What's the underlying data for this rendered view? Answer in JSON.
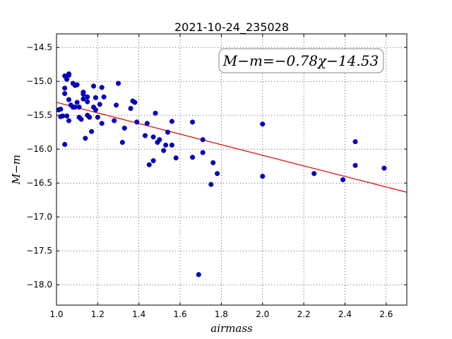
{
  "chart_data": {
    "type": "scatter",
    "title": "2021-10-24_235028",
    "xlabel": "airmass",
    "ylabel": "M−m",
    "xlim": [
      1.0,
      2.7
    ],
    "ylim": [
      -18.3,
      -14.3
    ],
    "y_inverted": false,
    "grid": true,
    "x_ticks": [
      "1.0",
      "1.2",
      "1.4",
      "1.6",
      "1.8",
      "2.0",
      "2.2",
      "2.4",
      "2.6"
    ],
    "x_tick_values": [
      1.0,
      1.2,
      1.4,
      1.6,
      1.8,
      2.0,
      2.2,
      2.4,
      2.6
    ],
    "y_ticks": [
      "−14.5",
      "−15.0",
      "−15.5",
      "−16.0",
      "−16.5",
      "−17.0",
      "−17.5",
      "−18.0"
    ],
    "y_tick_values": [
      -14.5,
      -15.0,
      -15.5,
      -16.0,
      -16.5,
      -17.0,
      -17.5,
      -18.0
    ],
    "annotation": "M−m=−0.78χ−14.53",
    "annotation_position": "top-right",
    "fit_line": {
      "slope": -0.78,
      "intercept": -14.53,
      "color": "#dd0000"
    },
    "point_color": "#0000cc",
    "points": [
      [
        1.01,
        -15.42
      ],
      [
        1.02,
        -15.52
      ],
      [
        1.02,
        -15.41
      ],
      [
        1.03,
        -15.51
      ],
      [
        1.04,
        -14.92
      ],
      [
        1.04,
        -15.1
      ],
      [
        1.04,
        -15.18
      ],
      [
        1.04,
        -15.93
      ],
      [
        1.05,
        -15.51
      ],
      [
        1.05,
        -14.97
      ],
      [
        1.06,
        -14.89
      ],
      [
        1.06,
        -14.91
      ],
      [
        1.06,
        -15.27
      ],
      [
        1.06,
        -15.58
      ],
      [
        1.07,
        -15.35
      ],
      [
        1.08,
        -15.03
      ],
      [
        1.08,
        -15.38
      ],
      [
        1.09,
        -15.06
      ],
      [
        1.09,
        -15.38
      ],
      [
        1.1,
        -15.05
      ],
      [
        1.1,
        -15.31
      ],
      [
        1.11,
        -15.38
      ],
      [
        1.11,
        -15.53
      ],
      [
        1.12,
        -15.56
      ],
      [
        1.13,
        -15.16
      ],
      [
        1.13,
        -15.19
      ],
      [
        1.13,
        -15.26
      ],
      [
        1.14,
        -15.84
      ],
      [
        1.15,
        -15.23
      ],
      [
        1.15,
        -15.3
      ],
      [
        1.15,
        -15.5
      ],
      [
        1.16,
        -15.53
      ],
      [
        1.17,
        -15.74
      ],
      [
        1.18,
        -15.07
      ],
      [
        1.18,
        -15.38
      ],
      [
        1.19,
        -15.24
      ],
      [
        1.19,
        -15.42
      ],
      [
        1.2,
        -15.53
      ],
      [
        1.21,
        -15.34
      ],
      [
        1.22,
        -15.09
      ],
      [
        1.22,
        -15.62
      ],
      [
        1.23,
        -15.23
      ],
      [
        1.28,
        -15.58
      ],
      [
        1.29,
        -15.35
      ],
      [
        1.3,
        -15.03
      ],
      [
        1.32,
        -15.9
      ],
      [
        1.33,
        -15.69
      ],
      [
        1.36,
        -15.4
      ],
      [
        1.37,
        -15.29
      ],
      [
        1.38,
        -15.31
      ],
      [
        1.39,
        -15.6
      ],
      [
        1.43,
        -15.8
      ],
      [
        1.44,
        -15.62
      ],
      [
        1.45,
        -16.23
      ],
      [
        1.47,
        -15.82
      ],
      [
        1.47,
        -16.17
      ],
      [
        1.48,
        -15.47
      ],
      [
        1.49,
        -15.9
      ],
      [
        1.5,
        -15.86
      ],
      [
        1.52,
        -16.02
      ],
      [
        1.53,
        -15.94
      ],
      [
        1.54,
        -15.75
      ],
      [
        1.56,
        -15.59
      ],
      [
        1.56,
        -15.94
      ],
      [
        1.58,
        -16.13
      ],
      [
        1.66,
        -15.6
      ],
      [
        1.66,
        -16.12
      ],
      [
        1.69,
        -17.85
      ],
      [
        1.71,
        -15.86
      ],
      [
        1.71,
        -16.05
      ],
      [
        1.75,
        -16.52
      ],
      [
        1.76,
        -16.2
      ],
      [
        1.78,
        -16.36
      ],
      [
        2.0,
        -15.63
      ],
      [
        2.0,
        -16.4
      ],
      [
        2.25,
        -16.36
      ],
      [
        2.39,
        -16.45
      ],
      [
        2.45,
        -15.89
      ],
      [
        2.45,
        -16.24
      ],
      [
        2.59,
        -16.28
      ]
    ]
  }
}
